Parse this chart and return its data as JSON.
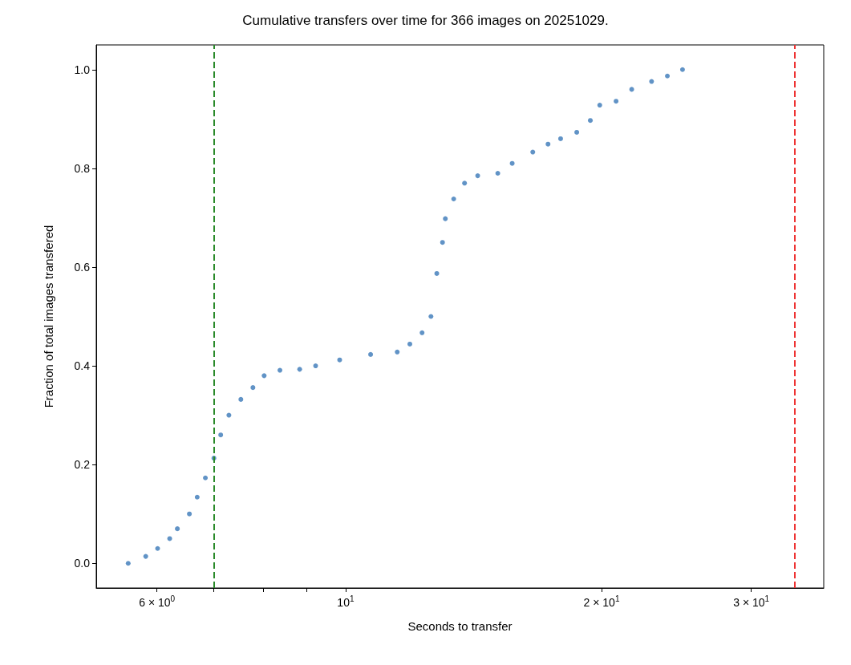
{
  "chart_data": {
    "type": "scatter",
    "title": "Cumulative transfers over time for 366 images on 20251029.",
    "xlabel": "Seconds to transfer",
    "ylabel": "Fraction of total images transfered",
    "log": "x",
    "xlim": [
      5.09,
      36.5
    ],
    "ylim": [
      -0.05,
      1.05
    ],
    "xticks": [
      {
        "value": 6,
        "label": "6 × 10$^{0}$"
      },
      {
        "value": 7,
        "label": null
      },
      {
        "value": 8,
        "label": null
      },
      {
        "value": 9,
        "label": null
      },
      {
        "value": 10,
        "label": "10$^{1}$"
      },
      {
        "value": 20,
        "label": "2 × 10$^{1}$"
      },
      {
        "value": 30,
        "label": "3 × 10$^{1}$"
      }
    ],
    "yticks": [
      {
        "value": 0,
        "label": "0.0"
      },
      {
        "value": 0.2,
        "label": "0.2"
      },
      {
        "value": 0.4,
        "label": "0.4"
      },
      {
        "value": 0.6,
        "label": "0.6"
      },
      {
        "value": 0.8,
        "label": "0.8"
      },
      {
        "value": 1,
        "label": "1.0"
      }
    ],
    "grid": false,
    "marker": "circle",
    "series": [
      {
        "color": "#3a78b8",
        "x": [
          5.55,
          5.82,
          6.01,
          6.21,
          6.34,
          6.55,
          6.69,
          6.84,
          7.0,
          7.13,
          7.29,
          7.53,
          7.78,
          8.02,
          8.37,
          8.83,
          9.22,
          9.84,
          10.7,
          11.5,
          11.9,
          12.3,
          12.6,
          12.8,
          13.0,
          13.1,
          13.4,
          13.8,
          14.3,
          15.1,
          15.7,
          16.6,
          17.3,
          17.9,
          18.7,
          19.4,
          19.9,
          20.8,
          21.7,
          22.9,
          23.9,
          24.9
        ],
        "values": [
          0.0,
          0.014,
          0.03,
          0.05,
          0.07,
          0.1,
          0.134,
          0.173,
          0.213,
          0.26,
          0.3,
          0.332,
          0.356,
          0.38,
          0.391,
          0.393,
          0.4,
          0.412,
          0.423,
          0.428,
          0.444,
          0.467,
          0.5,
          0.587,
          0.65,
          0.698,
          0.738,
          0.77,
          0.785,
          0.79,
          0.81,
          0.833,
          0.849,
          0.86,
          0.873,
          0.897,
          0.928,
          0.936,
          0.96,
          0.976,
          0.987,
          1.0
        ]
      }
    ],
    "ref_lines": [
      {
        "axis": "x",
        "value": 7.0,
        "color": "#2a8a2a",
        "line_style": "dashed"
      },
      {
        "axis": "x",
        "value": 33.7,
        "color": "#ee3333",
        "line_style": "dashed"
      }
    ]
  }
}
